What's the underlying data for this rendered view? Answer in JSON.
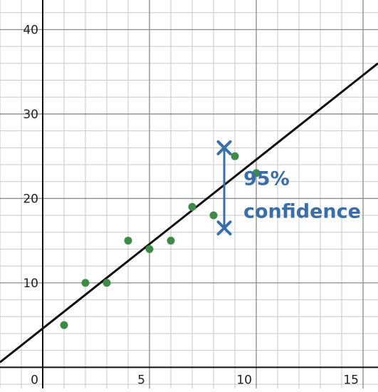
{
  "chart_data": {
    "type": "scatter",
    "title": "",
    "xlabel": "",
    "ylabel": "",
    "xlim": [
      -2,
      15.7
    ],
    "ylim": [
      -2.5,
      43.5
    ],
    "grid": true,
    "minor_grid_step": {
      "x": 1,
      "y": 2
    },
    "major_grid_step": {
      "x": 5,
      "y": 10
    },
    "x_ticks": [
      0,
      5,
      10,
      15
    ],
    "x_tick_labels": [
      "0",
      "5",
      "10",
      "15"
    ],
    "y_ticks": [
      10,
      20,
      30,
      40
    ],
    "y_tick_labels": [
      "10",
      "20",
      "30",
      "40"
    ],
    "series": [
      {
        "type": "scatter",
        "color": "#3d8b47",
        "points": [
          {
            "x": 1,
            "y": 5
          },
          {
            "x": 2,
            "y": 10
          },
          {
            "x": 3,
            "y": 10
          },
          {
            "x": 4,
            "y": 15
          },
          {
            "x": 5,
            "y": 14
          },
          {
            "x": 6,
            "y": 15
          },
          {
            "x": 7,
            "y": 19
          },
          {
            "x": 8,
            "y": 18
          },
          {
            "x": 9,
            "y": 25
          },
          {
            "x": 10,
            "y": 23
          }
        ]
      },
      {
        "type": "line",
        "color": "#111111",
        "slope": 2,
        "intercept": 4.6
      }
    ],
    "annotations": [
      {
        "type": "confidence-interval",
        "x": 8.5,
        "y_low": 16.5,
        "y_high": 26,
        "color": "#3a6ea8",
        "label_lines": [
          "95%",
          "confidence"
        ],
        "label_x": 9.4,
        "label_y_top": 21.6,
        "label_y_bottom": 17.7
      }
    ]
  }
}
